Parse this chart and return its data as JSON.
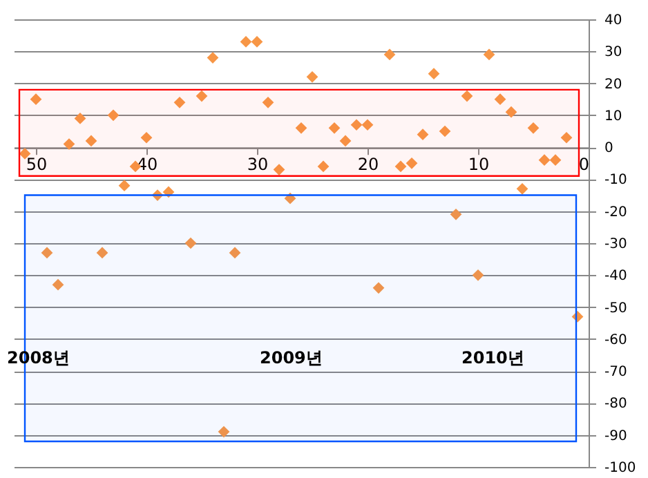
{
  "chart_data": {
    "type": "scatter",
    "x": [
      51,
      50,
      49,
      48,
      47,
      46,
      45,
      44,
      43,
      42,
      41,
      40,
      39,
      38,
      37,
      36,
      35,
      34,
      33,
      32,
      31,
      30,
      29,
      28,
      27,
      26,
      25,
      24,
      23,
      22,
      21,
      20,
      19,
      18,
      17,
      16,
      15,
      14,
      13,
      12,
      11,
      10,
      9,
      8,
      7,
      6,
      5,
      4,
      3,
      2,
      1
    ],
    "series": [
      {
        "color": "#f79646",
        "values": [
          -2,
          15,
          -33,
          -43,
          1,
          9,
          2,
          -33,
          10,
          -12,
          -6,
          3,
          -15,
          -14,
          14,
          -30,
          16,
          28,
          -89,
          -33,
          33,
          33,
          14,
          -7,
          -16,
          6,
          22,
          -6,
          6,
          2,
          7,
          7,
          -44,
          29,
          -6,
          -5,
          4,
          23,
          5,
          -21,
          16,
          -40,
          29,
          15,
          11,
          -13,
          6,
          -4,
          -4,
          3,
          -53
        ]
      }
    ],
    "xlim": [
      52,
      0
    ],
    "xticks": [
      0,
      10,
      20,
      30,
      40,
      50
    ],
    "ylim": [
      -100,
      40
    ],
    "yticks": [
      -100,
      -90,
      -80,
      -70,
      -60,
      -50,
      -40,
      -30,
      -20,
      -10,
      0,
      10,
      20,
      30,
      40
    ],
    "grid": "y",
    "marker": "diamond",
    "annotations": [
      "2008년",
      "2009년",
      "2010년"
    ],
    "bands": [
      {
        "axis": "y",
        "from": -9,
        "to": 18,
        "color": "#ff0000"
      },
      {
        "axis": "y",
        "from": -92,
        "to": -15,
        "color": "#0055ff"
      }
    ]
  }
}
